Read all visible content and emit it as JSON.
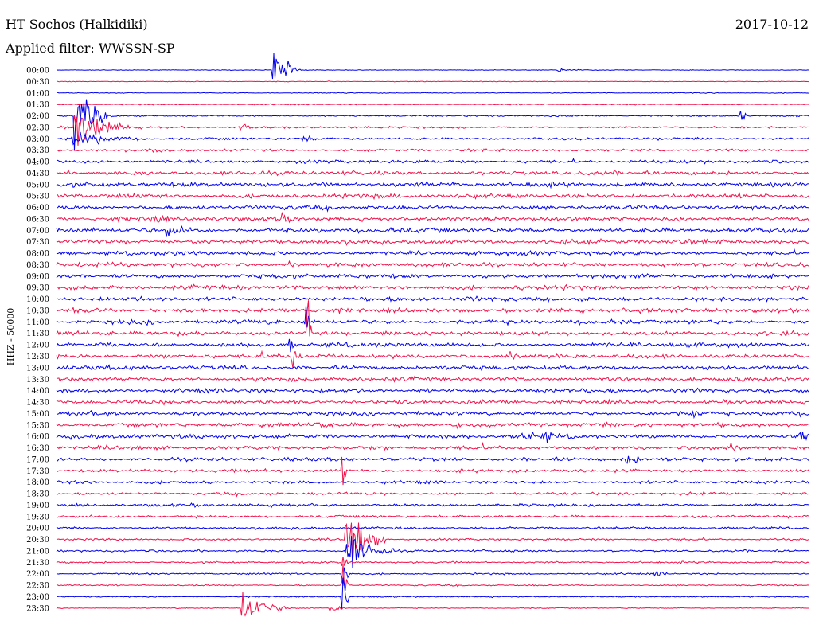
{
  "header": {
    "station": "HT Sochos (Halkidiki)",
    "date": "2017-10-12",
    "filter": "Applied filter: WWSSN-SP"
  },
  "chart_data": {
    "type": "line",
    "title": "HT Sochos (Halkidiki)",
    "date": "2017-10-12",
    "filter": "Applied filter: WWSSN-SP",
    "ylabel": "HHZ - 50000",
    "row_times": [
      "00:00",
      "00:30",
      "01:00",
      "01:30",
      "02:00",
      "02:30",
      "03:00",
      "03:30",
      "04:00",
      "04:30",
      "05:00",
      "05:30",
      "06:00",
      "06:30",
      "07:00",
      "07:30",
      "08:00",
      "08:30",
      "09:00",
      "09:30",
      "10:00",
      "10:30",
      "11:00",
      "11:30",
      "12:00",
      "12:30",
      "13:00",
      "13:30",
      "14:00",
      "14:30",
      "15:00",
      "15:30",
      "16:00",
      "16:30",
      "17:00",
      "17:30",
      "18:00",
      "18:30",
      "19:00",
      "19:30",
      "20:00",
      "20:30",
      "21:00",
      "21:30",
      "22:00",
      "22:30",
      "23:00",
      "23:30"
    ],
    "row_noise": [
      0.3,
      0.3,
      0.35,
      0.45,
      0.7,
      0.9,
      1.0,
      1.1,
      1.4,
      1.7,
      2.0,
      1.9,
      1.8,
      1.8,
      2.0,
      1.9,
      1.8,
      1.8,
      1.8,
      1.9,
      1.9,
      1.9,
      1.9,
      1.8,
      1.8,
      1.8,
      1.8,
      1.8,
      1.8,
      1.7,
      1.7,
      1.8,
      1.8,
      1.7,
      1.6,
      1.4,
      1.3,
      1.2,
      1.2,
      1.1,
      1.0,
      0.9,
      0.9,
      0.8,
      0.7,
      0.6,
      0.5,
      0.4
    ],
    "row_colors": [
      "#0000ee",
      "#f0124b"
    ],
    "events": [
      {
        "row": 0,
        "minute": 8.6,
        "amplitude": 55,
        "duration": 0.8
      },
      {
        "row": 4,
        "minute": 0.7,
        "amplitude": 40,
        "duration": 1.5
      },
      {
        "row": 5,
        "minute": 0.7,
        "amplitude": 26,
        "duration": 2.5
      },
      {
        "row": 6,
        "minute": 0.6,
        "amplitude": 10,
        "duration": 3.5
      },
      {
        "row": 0,
        "minute": 9.3,
        "amplitude": 3,
        "duration": 1.2
      },
      {
        "row": 0,
        "minute": 20.0,
        "amplitude": 3,
        "duration": 1.2
      },
      {
        "row": 5,
        "minute": 7.3,
        "amplitude": 5,
        "duration": 1.5
      },
      {
        "row": 6,
        "minute": 9.8,
        "amplitude": 5,
        "duration": 1.5
      },
      {
        "row": 7,
        "minute": 3.7,
        "amplitude": 5,
        "duration": 1.0
      },
      {
        "row": 7,
        "minute": 3.7,
        "amplitude": 4,
        "duration": 1.0
      },
      {
        "row": 4,
        "minute": 27.3,
        "amplitude": 16,
        "duration": 0.2
      },
      {
        "row": 13,
        "minute": 3.7,
        "amplitude": 6,
        "duration": 2.0
      },
      {
        "row": 13,
        "minute": 8.7,
        "amplitude": 7,
        "duration": 2.0
      },
      {
        "row": 14,
        "minute": 4.4,
        "amplitude": 8,
        "duration": 2.0
      },
      {
        "row": 14,
        "minute": 5.2,
        "amplitude": 5,
        "duration": 1.5
      },
      {
        "row": 24,
        "minute": 9.3,
        "amplitude": 10,
        "duration": 0.2
      },
      {
        "row": 25,
        "minute": 9.4,
        "amplitude": 28,
        "duration": 0.2
      },
      {
        "row": 26,
        "minute": 9.5,
        "amplitude": 14,
        "duration": 0.2
      },
      {
        "row": 22,
        "minute": 9.9,
        "amplitude": 30,
        "duration": 0.2
      },
      {
        "row": 23,
        "minute": 10.0,
        "amplitude": 30,
        "duration": 0.2
      },
      {
        "row": 32,
        "minute": 18.5,
        "amplitude": 9,
        "duration": 1.5
      },
      {
        "row": 32,
        "minute": 19.4,
        "amplitude": 8,
        "duration": 1.0
      },
      {
        "row": 32,
        "minute": 29.6,
        "amplitude": 11,
        "duration": 2.0
      },
      {
        "row": 34,
        "minute": 22.7,
        "amplitude": 7,
        "duration": 1.5
      },
      {
        "row": 35,
        "minute": 11.4,
        "amplitude": 28,
        "duration": 0.2
      },
      {
        "row": 41,
        "minute": 11.5,
        "amplitude": 45,
        "duration": 1.6
      },
      {
        "row": 42,
        "minute": 11.5,
        "amplitude": 28,
        "duration": 2.0
      },
      {
        "row": 43,
        "minute": 11.4,
        "amplitude": 28,
        "duration": 0.3
      },
      {
        "row": 44,
        "minute": 11.4,
        "amplitude": 28,
        "duration": 0.3
      },
      {
        "row": 45,
        "minute": 11.4,
        "amplitude": 28,
        "duration": 0.3
      },
      {
        "row": 46,
        "minute": 11.4,
        "amplitude": 28,
        "duration": 0.3
      },
      {
        "row": 47,
        "minute": 7.4,
        "amplitude": 20,
        "duration": 2.0
      },
      {
        "row": 47,
        "minute": 10.9,
        "amplitude": 6,
        "duration": 0.8
      },
      {
        "row": 44,
        "minute": 23.8,
        "amplitude": 4,
        "duration": 1.2
      },
      {
        "row": 30,
        "minute": 25.3,
        "amplitude": 6,
        "duration": 1.5
      },
      {
        "row": 31,
        "minute": 10.3,
        "amplitude": 6,
        "duration": 1.5
      },
      {
        "row": 31,
        "minute": 15.8,
        "amplitude": 6,
        "duration": 1.0
      }
    ]
  }
}
